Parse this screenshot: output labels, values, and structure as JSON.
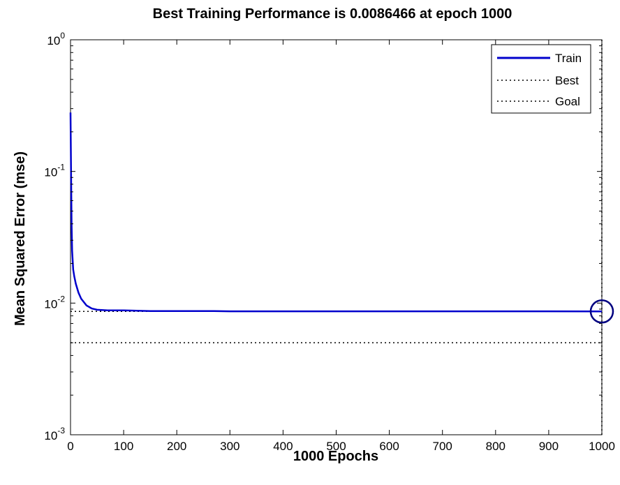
{
  "chart_data": {
    "type": "line",
    "title": "Best Training Performance is 0.0086466 at epoch 1000",
    "xlabel": "1000 Epochs",
    "ylabel": "Mean Squared Error  (mse)",
    "xlim": [
      0,
      1000
    ],
    "ylim": [
      0.001,
      1
    ],
    "yscale": "log",
    "grid": false,
    "legend_position": "top-right",
    "x_ticks": [
      "0",
      "100",
      "200",
      "300",
      "400",
      "500",
      "600",
      "700",
      "800",
      "900",
      "1000"
    ],
    "x_tick_values": [
      0,
      100,
      200,
      300,
      400,
      500,
      600,
      700,
      800,
      900,
      1000
    ],
    "y_ticks": [
      {
        "value": 0.001,
        "base": "10",
        "exp": "-3"
      },
      {
        "value": 0.01,
        "base": "10",
        "exp": "-2"
      },
      {
        "value": 0.1,
        "base": "10",
        "exp": "-1"
      },
      {
        "value": 1,
        "base": "10",
        "exp": "0"
      }
    ],
    "series": [
      {
        "name": "Train",
        "color": "#0000cc",
        "style": "solid",
        "x": [
          0,
          1,
          2,
          3,
          5,
          7,
          10,
          15,
          20,
          30,
          40,
          50,
          70,
          100,
          150,
          200,
          270,
          300,
          400,
          500,
          600,
          700,
          800,
          900,
          1000
        ],
        "y": [
          0.28,
          0.1,
          0.04,
          0.025,
          0.018,
          0.016,
          0.014,
          0.012,
          0.0108,
          0.0096,
          0.0091,
          0.0089,
          0.0088,
          0.0088,
          0.0087,
          0.0087,
          0.0087,
          0.00866,
          0.00866,
          0.00866,
          0.00866,
          0.00866,
          0.00866,
          0.00866,
          0.0086466
        ]
      },
      {
        "name": "Best",
        "color": "#000000",
        "style": "dotted",
        "x": [
          0,
          1000
        ],
        "y": [
          0.0086466,
          0.0086466
        ]
      },
      {
        "name": "Goal",
        "color": "#000000",
        "style": "dotted",
        "x": [
          0,
          1000
        ],
        "y": [
          0.005,
          0.005
        ]
      }
    ],
    "best_marker": {
      "x": 1000,
      "y": 0.0086466,
      "color": "#000080",
      "shape": "circle"
    },
    "best_vertical_line": {
      "x": 1000,
      "color": "#000000",
      "style": "dotted"
    }
  }
}
